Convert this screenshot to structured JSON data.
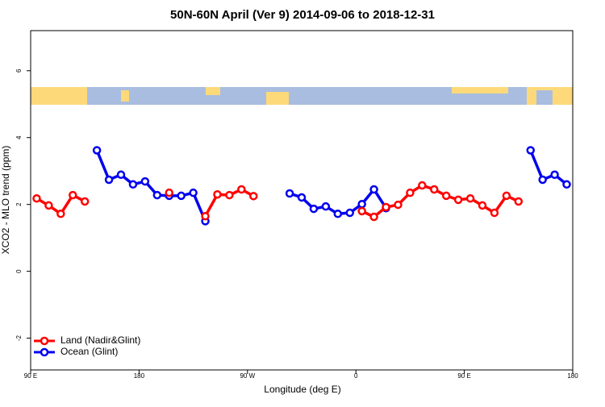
{
  "chart_data": {
    "type": "line",
    "title": "50N-60N April (Ver 9)   2014-09-06 to 2018-12-31",
    "x_label": "Longitude (deg E)",
    "y_label": "XCO2 - MLO trend (ppm)",
    "x": [
      95,
      105,
      115,
      125,
      135,
      145,
      155,
      165,
      175,
      185,
      195,
      205,
      215,
      225,
      235,
      245,
      255,
      265,
      275,
      285,
      295,
      305,
      315,
      325,
      335,
      345,
      355,
      365,
      375,
      385,
      395,
      405,
      415,
      425,
      435,
      445,
      455,
      465,
      475,
      485,
      495,
      505,
      515,
      525,
      535
    ],
    "series": [
      {
        "name": "Land (Nadir&Glint)",
        "color": "#ff0000",
        "values": [
          2.18,
          1.97,
          1.72,
          2.28,
          2.09,
          null,
          null,
          null,
          null,
          null,
          null,
          2.35,
          null,
          null,
          1.65,
          2.3,
          2.28,
          2.45,
          2.25,
          null,
          null,
          null,
          null,
          null,
          null,
          null,
          null,
          1.8,
          1.63,
          1.92,
          1.99,
          2.35,
          2.57,
          2.45,
          2.26,
          2.14,
          2.18,
          1.97,
          1.75,
          2.26,
          2.09,
          null,
          null,
          null,
          null
        ]
      },
      {
        "name": "Ocean (Glint)",
        "color": "#0000ee",
        "values": [
          null,
          null,
          null,
          null,
          null,
          3.62,
          2.74,
          2.89,
          2.6,
          2.69,
          2.28,
          2.26,
          2.26,
          2.35,
          1.5,
          null,
          null,
          null,
          null,
          null,
          null,
          2.33,
          2.21,
          1.87,
          1.94,
          1.72,
          1.75,
          2.01,
          2.45,
          1.89,
          null,
          null,
          null,
          null,
          null,
          null,
          null,
          null,
          null,
          null,
          null,
          3.62,
          2.74,
          2.89,
          2.6
        ]
      }
    ],
    "xlim": [
      90,
      540
    ],
    "xticks": [
      {
        "value": 90,
        "label": "90 E"
      },
      180,
      {
        "value": 270,
        "label": "90 W"
      },
      {
        "value": 360,
        "label": "0"
      },
      {
        "value": 450,
        "label": "90 E"
      },
      {
        "value": 540,
        "label": "180"
      }
    ],
    "ylim": [
      -2.95,
      7.2
    ],
    "yticks": [
      -2,
      0,
      2,
      4,
      6
    ],
    "legend": "bottom-left"
  }
}
